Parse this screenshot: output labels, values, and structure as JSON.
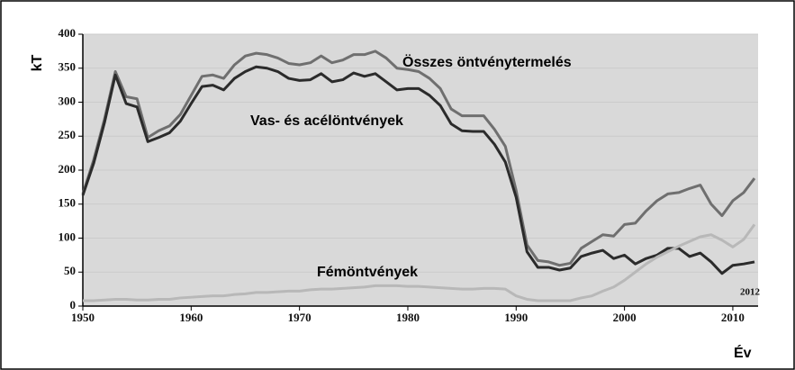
{
  "chart_data": {
    "type": "line",
    "x_label": "Év",
    "y_label": "kT",
    "annotations": [
      "Összes öntvénytermelés",
      "Vas- és acélöntvények",
      "Fémöntvények",
      "2012"
    ],
    "x": [
      1950,
      1951,
      1952,
      1953,
      1954,
      1955,
      1956,
      1957,
      1958,
      1959,
      1960,
      1961,
      1962,
      1963,
      1964,
      1965,
      1966,
      1967,
      1968,
      1969,
      1970,
      1971,
      1972,
      1973,
      1974,
      1975,
      1976,
      1977,
      1978,
      1979,
      1980,
      1981,
      1982,
      1983,
      1984,
      1985,
      1986,
      1987,
      1988,
      1989,
      1990,
      1991,
      1992,
      1993,
      1994,
      1995,
      1996,
      1997,
      1998,
      1999,
      2000,
      2001,
      2002,
      2003,
      2004,
      2005,
      2006,
      2007,
      2008,
      2009,
      2010,
      2011,
      2012
    ],
    "series": [
      {
        "color": "#6f6f6f",
        "values": [
          165,
          215,
          275,
          345,
          308,
          305,
          248,
          258,
          265,
          282,
          310,
          338,
          340,
          335,
          355,
          368,
          372,
          370,
          365,
          357,
          355,
          358,
          368,
          358,
          362,
          370,
          370,
          375,
          365,
          350,
          348,
          345,
          335,
          320,
          290,
          280,
          280,
          280,
          260,
          235,
          170,
          90,
          67,
          65,
          60,
          63,
          85,
          95,
          105,
          103,
          120,
          122,
          140,
          155,
          165,
          167,
          173,
          178,
          150,
          133,
          155,
          167,
          188
        ]
      },
      {
        "color": "#2b2b2b",
        "values": [
          163,
          210,
          270,
          340,
          298,
          293,
          242,
          248,
          255,
          272,
          298,
          323,
          325,
          318,
          335,
          345,
          352,
          350,
          345,
          335,
          332,
          333,
          342,
          330,
          333,
          343,
          338,
          342,
          330,
          318,
          320,
          320,
          310,
          295,
          268,
          258,
          257,
          257,
          238,
          212,
          160,
          80,
          57,
          57,
          53,
          56,
          73,
          78,
          82,
          70,
          75,
          62,
          70,
          75,
          85,
          85,
          73,
          78,
          65,
          48,
          60,
          62,
          65
        ]
      },
      {
        "color": "#b8b8b8",
        "values": [
          8,
          8,
          9,
          10,
          10,
          9,
          9,
          10,
          10,
          12,
          13,
          14,
          15,
          15,
          17,
          18,
          20,
          20,
          21,
          22,
          22,
          24,
          25,
          25,
          26,
          27,
          28,
          30,
          30,
          30,
          29,
          29,
          28,
          27,
          26,
          25,
          25,
          26,
          26,
          25,
          15,
          10,
          8,
          8,
          8,
          8,
          12,
          15,
          22,
          28,
          38,
          50,
          62,
          72,
          80,
          88,
          95,
          102,
          105,
          97,
          87,
          98,
          120
        ]
      }
    ],
    "xlim": [
      1950,
      2012
    ],
    "xticks": [
      1950,
      1960,
      1970,
      1980,
      1990,
      2000,
      2010
    ],
    "ylim": [
      0,
      400
    ],
    "yticks": [
      0,
      50,
      100,
      150,
      200,
      250,
      300,
      350,
      400
    ],
    "grid": true
  }
}
